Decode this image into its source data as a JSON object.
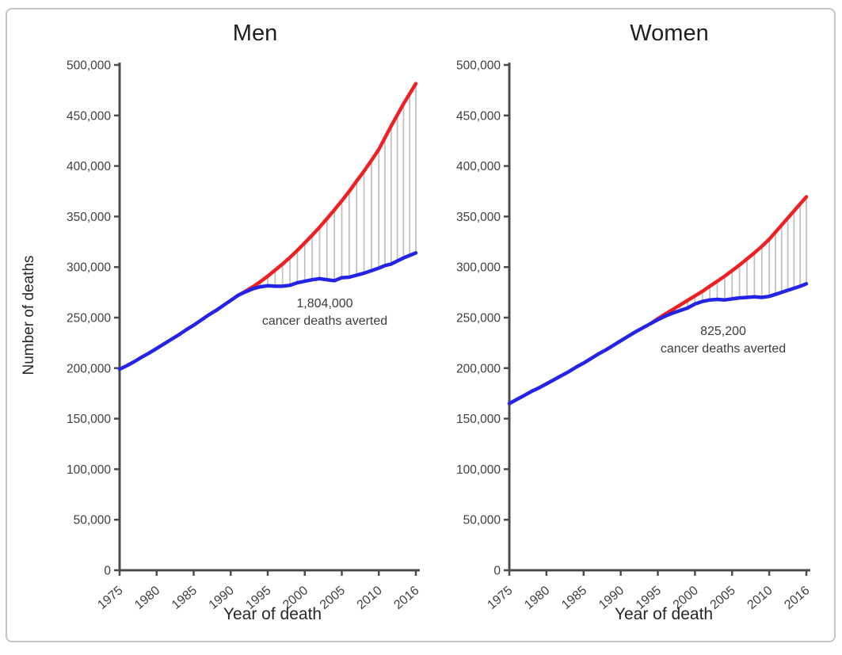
{
  "chart_data": [
    {
      "type": "line",
      "title": "Men",
      "xlabel": "Year of death",
      "ylabel": "Number of deaths",
      "xlim": [
        1975,
        2016
      ],
      "ylim": [
        0,
        500000
      ],
      "x_ticks": [
        1975,
        1980,
        1985,
        1990,
        1995,
        2000,
        2005,
        2010,
        2016
      ],
      "y_ticks": [
        0,
        50000,
        100000,
        150000,
        200000,
        250000,
        300000,
        350000,
        400000,
        450000,
        500000
      ],
      "grid": false,
      "legend": "none",
      "annotation": {
        "value": "1,804,000",
        "label": "cancer deaths averted"
      },
      "hatch_years": {
        "start": 1993,
        "end": 2016
      },
      "axis_color": "#4c4c4c",
      "hatch_color": "#bfbfbf",
      "tick_label_color": "#3f3f3f",
      "series": [
        {
          "role": "expected",
          "color": "#ee2024",
          "x_start": 1991,
          "values": [
            272000,
            276000,
            280500,
            285500,
            291000,
            297000,
            303000,
            309500,
            316500,
            324000,
            331500,
            339500,
            348000,
            356500,
            365500,
            375000,
            385000,
            395000,
            405500,
            416500,
            428000,
            439500,
            450500,
            461500,
            471500,
            481500
          ]
        },
        {
          "role": "actual",
          "color": "#2424e8",
          "x_start": 1975,
          "values": [
            199000,
            202500,
            206500,
            211000,
            215000,
            219500,
            224000,
            228500,
            233000,
            238000,
            242500,
            247500,
            252500,
            257000,
            262000,
            267000,
            272000,
            275500,
            278500,
            280500,
            281500,
            281000,
            281000,
            282000,
            284500,
            286000,
            287500,
            288500,
            287500,
            286500,
            289500,
            290000,
            292000,
            294000,
            296500,
            299000,
            301500,
            303000,
            306000,
            309000,
            311500,
            314000
          ]
        }
      ]
    },
    {
      "type": "line",
      "title": "Women",
      "xlabel": "Year of death",
      "ylabel": "Number of deaths",
      "xlim": [
        1975,
        2016
      ],
      "ylim": [
        0,
        500000
      ],
      "x_ticks": [
        1975,
        1980,
        1985,
        1990,
        1995,
        2000,
        2005,
        2010,
        2016
      ],
      "y_ticks": [
        0,
        50000,
        100000,
        150000,
        200000,
        250000,
        300000,
        350000,
        400000,
        450000,
        500000
      ],
      "grid": false,
      "legend": "none",
      "annotation": {
        "value": "825,200",
        "label": "cancer deaths averted"
      },
      "hatch_years": {
        "start": 1998,
        "end": 2016
      },
      "axis_color": "#4c4c4c",
      "hatch_color": "#bfbfbf",
      "tick_label_color": "#3f3f3f",
      "series": [
        {
          "role": "expected",
          "color": "#ee2024",
          "x_start": 1994,
          "values": [
            244000,
            249000,
            253500,
            258000,
            262500,
            267000,
            271500,
            276000,
            281000,
            286000,
            291000,
            296500,
            302000,
            308000,
            314000,
            320500,
            327500,
            334500,
            341500,
            348500,
            355500,
            362500,
            369500
          ]
        },
        {
          "role": "actual",
          "color": "#2424e8",
          "x_start": 1975,
          "values": [
            165000,
            169000,
            173000,
            177000,
            180500,
            184500,
            188500,
            192500,
            196500,
            201000,
            205000,
            209500,
            214000,
            218000,
            222500,
            227000,
            231500,
            236000,
            240000,
            244000,
            248000,
            251500,
            254500,
            257000,
            259500,
            263500,
            266000,
            267500,
            268000,
            267500,
            268500,
            269500,
            270000,
            270500,
            270000,
            271000,
            273000,
            275000,
            277000,
            279000,
            281000,
            283500
          ]
        }
      ]
    }
  ]
}
